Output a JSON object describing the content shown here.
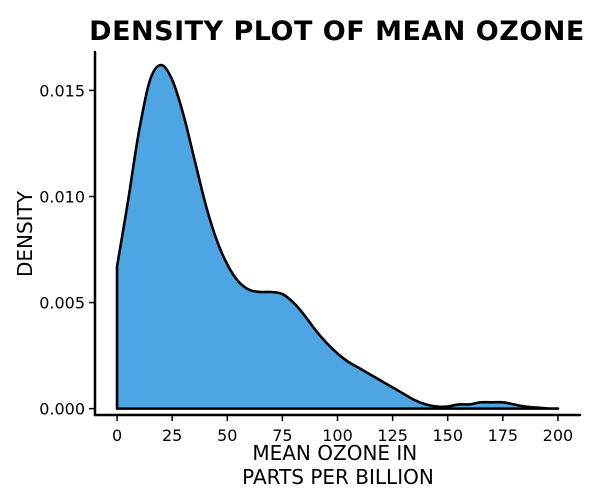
{
  "chart_data": {
    "type": "area",
    "title": "DENSITY PLOT OF MEAN OZONE",
    "xlabel": [
      "MEAN OZONE IN",
      "PARTS PER BILLION"
    ],
    "ylabel": "DENSITY",
    "xlim": [
      -10,
      210
    ],
    "ylim": [
      -0.0003,
      0.017
    ],
    "x_ticks": [
      0,
      25,
      50,
      75,
      100,
      125,
      150,
      175,
      200
    ],
    "x_tick_labels": [
      "0",
      "25",
      "50",
      "75",
      "100",
      "125",
      "150",
      "175",
      "200"
    ],
    "y_ticks": [
      0.0,
      0.005,
      0.01,
      0.015
    ],
    "y_tick_labels": [
      "0.000",
      "0.005",
      "0.010",
      "0.015"
    ],
    "grid": false,
    "legend": "none",
    "fill_color": "#4da6e3",
    "line_color": "#000000",
    "series": [
      {
        "x": [
          0,
          5,
          10,
          15,
          20,
          25,
          30,
          35,
          40,
          45,
          50,
          55,
          60,
          65,
          70,
          75,
          80,
          85,
          90,
          95,
          100,
          105,
          110,
          115,
          120,
          125,
          130,
          135,
          140,
          145,
          150,
          155,
          160,
          165,
          170,
          175,
          180,
          185,
          190,
          195,
          200
        ],
        "y": [
          0.0067,
          0.0098,
          0.0131,
          0.0155,
          0.0162,
          0.0155,
          0.0139,
          0.0118,
          0.0097,
          0.008,
          0.0068,
          0.006,
          0.0056,
          0.0055,
          0.0055,
          0.0054,
          0.005,
          0.0044,
          0.0037,
          0.0031,
          0.0026,
          0.0022,
          0.0019,
          0.0016,
          0.0013,
          0.001,
          0.0007,
          0.0004,
          0.0002,
          0.0001,
          0.0001,
          0.0002,
          0.0002,
          0.0003,
          0.0003,
          0.0003,
          0.0002,
          0.0001,
          5e-05,
          1e-05,
          0.0
        ]
      }
    ]
  }
}
